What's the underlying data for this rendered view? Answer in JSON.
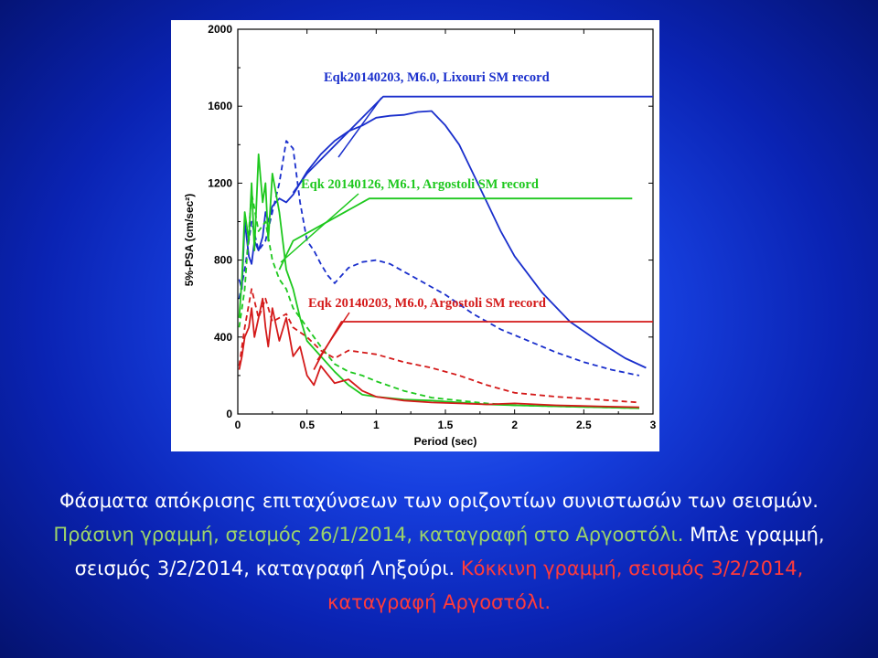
{
  "chart_data": {
    "type": "line",
    "xlabel": "Period (sec)",
    "ylabel": "5%-PSA (cm/sec²)",
    "xlim": [
      0,
      3
    ],
    "ylim": [
      0,
      2000
    ],
    "xticks": [
      "0",
      "0.5",
      "1",
      "1.5",
      "2",
      "2.5",
      "3"
    ],
    "yticks": [
      "0",
      "400",
      "800",
      "1200",
      "1600",
      "2000"
    ],
    "series": [
      {
        "color": "#1a2fcc",
        "style": "solid",
        "role": "spectrum",
        "x": [
          0.01,
          0.03,
          0.05,
          0.08,
          0.1,
          0.12,
          0.15,
          0.18,
          0.2,
          0.22,
          0.25,
          0.3,
          0.35,
          0.4,
          0.45,
          0.5,
          0.6,
          0.7,
          0.8,
          0.9,
          1.0,
          1.1,
          1.2,
          1.3,
          1.4,
          1.5,
          1.6,
          1.7,
          1.8,
          1.9,
          2.0,
          2.2,
          2.4,
          2.6,
          2.8,
          2.95
        ],
        "y": [
          700,
          650,
          1000,
          820,
          780,
          900,
          850,
          920,
          1050,
          1000,
          1080,
          1120,
          1100,
          1140,
          1200,
          1260,
          1350,
          1420,
          1470,
          1500,
          1540,
          1550,
          1555,
          1570,
          1575,
          1500,
          1400,
          1250,
          1100,
          950,
          820,
          630,
          480,
          380,
          290,
          240
        ]
      },
      {
        "color": "#1a2fcc",
        "style": "dashed",
        "role": "spectrum",
        "x": [
          0.01,
          0.05,
          0.1,
          0.15,
          0.2,
          0.25,
          0.3,
          0.35,
          0.4,
          0.45,
          0.5,
          0.55,
          0.6,
          0.65,
          0.7,
          0.8,
          0.9,
          1.0,
          1.1,
          1.2,
          1.3,
          1.4,
          1.5,
          1.7,
          1.9,
          2.1,
          2.3,
          2.5,
          2.7,
          2.9
        ],
        "y": [
          600,
          750,
          1000,
          850,
          900,
          1050,
          1200,
          1420,
          1380,
          1100,
          900,
          850,
          780,
          720,
          680,
          760,
          790,
          800,
          780,
          740,
          700,
          660,
          620,
          520,
          440,
          380,
          320,
          270,
          230,
          200
        ]
      },
      {
        "color": "#1a2fcc",
        "style": "solid",
        "role": "design",
        "x": [
          0.4,
          0.5,
          1.05,
          3.0
        ],
        "y": [
          1150,
          1250,
          1650,
          1650
        ]
      },
      {
        "color": "#1ec81e",
        "style": "solid",
        "role": "spectrum",
        "x": [
          0.01,
          0.03,
          0.05,
          0.08,
          0.1,
          0.12,
          0.15,
          0.18,
          0.2,
          0.22,
          0.25,
          0.3,
          0.35,
          0.4,
          0.45,
          0.5,
          0.6,
          0.7,
          0.8,
          0.9,
          1.0,
          1.2,
          1.4,
          1.6,
          1.8,
          2.0,
          2.3,
          2.6,
          2.9
        ],
        "y": [
          500,
          700,
          1050,
          900,
          1200,
          850,
          1350,
          1100,
          1200,
          900,
          1250,
          1050,
          750,
          650,
          500,
          380,
          300,
          220,
          150,
          100,
          90,
          75,
          70,
          60,
          50,
          45,
          40,
          35,
          30
        ]
      },
      {
        "color": "#1ec81e",
        "style": "dashed",
        "role": "spectrum",
        "x": [
          0.01,
          0.05,
          0.1,
          0.15,
          0.2,
          0.25,
          0.3,
          0.35,
          0.4,
          0.5,
          0.6,
          0.7,
          0.8,
          0.9,
          1.0,
          1.2,
          1.4,
          1.6,
          1.8,
          2.0,
          2.3,
          2.6,
          2.9
        ],
        "y": [
          450,
          650,
          1150,
          950,
          1000,
          800,
          700,
          650,
          550,
          450,
          350,
          260,
          220,
          200,
          170,
          120,
          85,
          70,
          55,
          45,
          40,
          35,
          30
        ]
      },
      {
        "color": "#1ec81e",
        "style": "solid",
        "role": "design",
        "x": [
          0.3,
          0.4,
          0.95,
          2.85
        ],
        "y": [
          750,
          900,
          1120,
          1120
        ]
      },
      {
        "color": "#d41a1a",
        "style": "solid",
        "role": "spectrum",
        "x": [
          0.01,
          0.03,
          0.05,
          0.08,
          0.1,
          0.12,
          0.15,
          0.18,
          0.2,
          0.22,
          0.25,
          0.3,
          0.35,
          0.4,
          0.45,
          0.5,
          0.55,
          0.6,
          0.7,
          0.8,
          0.9,
          1.0,
          1.2,
          1.4,
          1.6,
          1.8,
          2.0,
          2.3,
          2.6,
          2.9
        ],
        "y": [
          230,
          300,
          400,
          450,
          550,
          400,
          500,
          600,
          450,
          350,
          550,
          380,
          500,
          300,
          350,
          200,
          150,
          250,
          160,
          180,
          120,
          90,
          70,
          60,
          55,
          50,
          55,
          45,
          40,
          35
        ]
      },
      {
        "color": "#d41a1a",
        "style": "dashed",
        "role": "spectrum",
        "x": [
          0.01,
          0.05,
          0.1,
          0.15,
          0.2,
          0.25,
          0.3,
          0.35,
          0.4,
          0.5,
          0.6,
          0.7,
          0.8,
          0.9,
          1.0,
          1.2,
          1.4,
          1.6,
          1.8,
          2.0,
          2.3,
          2.6,
          2.9
        ],
        "y": [
          250,
          450,
          650,
          500,
          600,
          480,
          500,
          520,
          450,
          400,
          330,
          290,
          330,
          320,
          310,
          270,
          240,
          200,
          150,
          110,
          90,
          75,
          60
        ]
      },
      {
        "color": "#d41a1a",
        "style": "solid",
        "role": "design",
        "x": [
          0.55,
          0.6,
          0.75,
          3.0
        ],
        "y": [
          230,
          300,
          480,
          480
        ]
      }
    ],
    "annotations": [
      {
        "text": "Eqk20140203, M6.0, Lixouri SM record",
        "color": "#1a2fcc"
      },
      {
        "text": "Eqk 20140126, M6.1, Argostoli SM record",
        "color": "#1ec81e"
      },
      {
        "text": "Eqk 20140203, M6.0, Argostoli SM record",
        "color": "#d41a1a"
      }
    ]
  },
  "caption": {
    "part1": "Φάσματα απόκρισης επιταχύνσεων των οριζοντίων συνιστωσών των σεισμών.",
    "part2": " Πράσινη γραμμή, σεισμός 26/1/2014, καταγραφή στο Αργοστόλι.",
    "part3": " Μπλε γραμμή, σεισμός 3/2/2014, καταγραφή Ληξούρι.",
    "part4": " Κόκκινη γραμμή, σεισμός 3/2/2014, καταγραφή Αργοστόλι."
  }
}
